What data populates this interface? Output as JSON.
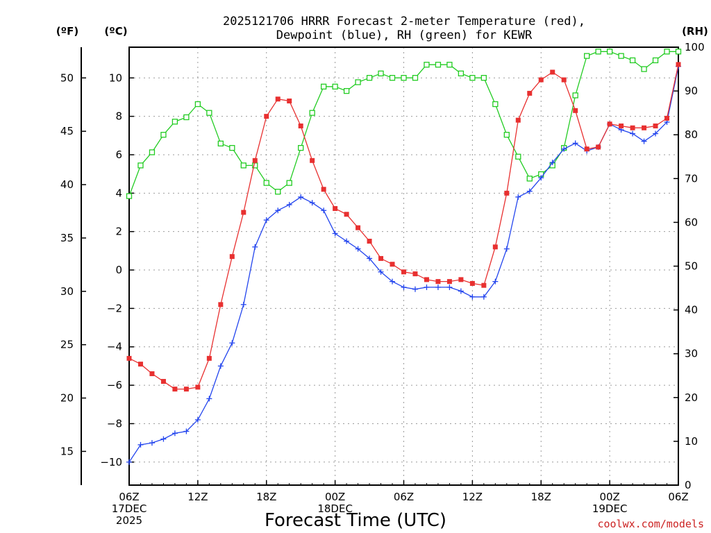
{
  "chart_data": {
    "type": "line",
    "title": [
      "2025121706 HRRR Forecast 2-meter Temperature (red),",
      "Dewpoint (blue), RH (green) for KEWR"
    ],
    "xlabel": "Forecast Time (UTC)",
    "credit": "coolwx.com/models",
    "axis_units": {
      "left_outer": "(ºF)",
      "left_inner": "(ºC)",
      "right": "(RH)"
    },
    "x_hours": [
      0,
      1,
      2,
      3,
      4,
      5,
      6,
      7,
      8,
      9,
      10,
      11,
      12,
      13,
      14,
      15,
      16,
      17,
      18,
      19,
      20,
      21,
      22,
      23,
      24,
      25,
      26,
      27,
      28,
      29,
      30,
      31,
      32,
      33,
      34,
      35,
      36,
      37,
      38,
      39,
      40,
      41,
      42,
      43,
      44,
      45,
      46,
      47,
      48
    ],
    "x_ticks": [
      {
        "h": 0,
        "lines": [
          "06Z",
          "17DEC",
          "2025"
        ]
      },
      {
        "h": 6,
        "lines": [
          "12Z"
        ]
      },
      {
        "h": 12,
        "lines": [
          "18Z"
        ]
      },
      {
        "h": 18,
        "lines": [
          "00Z",
          "18DEC"
        ]
      },
      {
        "h": 24,
        "lines": [
          "06Z"
        ]
      },
      {
        "h": 30,
        "lines": [
          "12Z"
        ]
      },
      {
        "h": 36,
        "lines": [
          "18Z"
        ]
      },
      {
        "h": 42,
        "lines": [
          "00Z",
          "19DEC"
        ]
      },
      {
        "h": 48,
        "lines": [
          "06Z"
        ]
      }
    ],
    "celsius_axis": {
      "ylim": [
        -11.2,
        11.6
      ],
      "ticks": [
        -10,
        -8,
        -6,
        -4,
        -2,
        0,
        2,
        4,
        6,
        8,
        10
      ]
    },
    "fahrenheit_ticks": [
      15,
      20,
      25,
      30,
      35,
      40,
      45,
      50
    ],
    "rh_axis": {
      "ylim": [
        0,
        100
      ],
      "ticks": [
        0,
        10,
        20,
        30,
        40,
        50,
        60,
        70,
        80,
        90,
        100
      ]
    },
    "series": [
      {
        "name": "Temperature",
        "axis": "celsius",
        "color": "#e83030",
        "marker": "filled-square",
        "values": [
          -4.6,
          -4.9,
          -5.4,
          -5.8,
          -6.2,
          -6.2,
          -6.1,
          -4.6,
          -1.8,
          0.7,
          3.0,
          5.7,
          8.0,
          8.9,
          8.8,
          7.5,
          5.7,
          4.2,
          3.2,
          2.9,
          2.2,
          1.5,
          0.6,
          0.3,
          -0.1,
          -0.2,
          -0.5,
          -0.6,
          -0.6,
          -0.5,
          -0.7,
          -0.8,
          1.2,
          4.0,
          7.8,
          9.2,
          9.9,
          10.3,
          9.9,
          8.3,
          6.3,
          6.4,
          7.6,
          7.5,
          7.4,
          7.4,
          7.5,
          7.9,
          10.7
        ]
      },
      {
        "name": "Dewpoint",
        "axis": "celsius",
        "color": "#2244ee",
        "marker": "plus",
        "values": [
          -10.0,
          -9.1,
          -9.0,
          -8.8,
          -8.5,
          -8.4,
          -7.8,
          -6.7,
          -5.0,
          -3.8,
          -1.8,
          1.2,
          2.6,
          3.1,
          3.4,
          3.8,
          3.5,
          3.1,
          1.9,
          1.5,
          1.1,
          0.6,
          -0.1,
          -0.6,
          -0.9,
          -1.0,
          -0.9,
          -0.9,
          -0.9,
          -1.1,
          -1.4,
          -1.4,
          -0.6,
          1.1,
          3.8,
          4.1,
          4.8,
          5.6,
          6.3,
          6.6,
          6.2,
          6.4,
          7.6,
          7.3,
          7.1,
          6.7,
          7.1,
          7.7,
          10.6
        ]
      },
      {
        "name": "RH",
        "axis": "rh",
        "color": "#22cc22",
        "marker": "open-square",
        "values": [
          66,
          73,
          76,
          80,
          83,
          84,
          87,
          85,
          78,
          77,
          73,
          73,
          69,
          67,
          69,
          77,
          85,
          91,
          91,
          90,
          92,
          93,
          94,
          93,
          93,
          93,
          96,
          96,
          96,
          94,
          93,
          93,
          87,
          80,
          75,
          70,
          71,
          73,
          77,
          89,
          98,
          99,
          99,
          98,
          97,
          95,
          97,
          99,
          99
        ]
      }
    ]
  }
}
